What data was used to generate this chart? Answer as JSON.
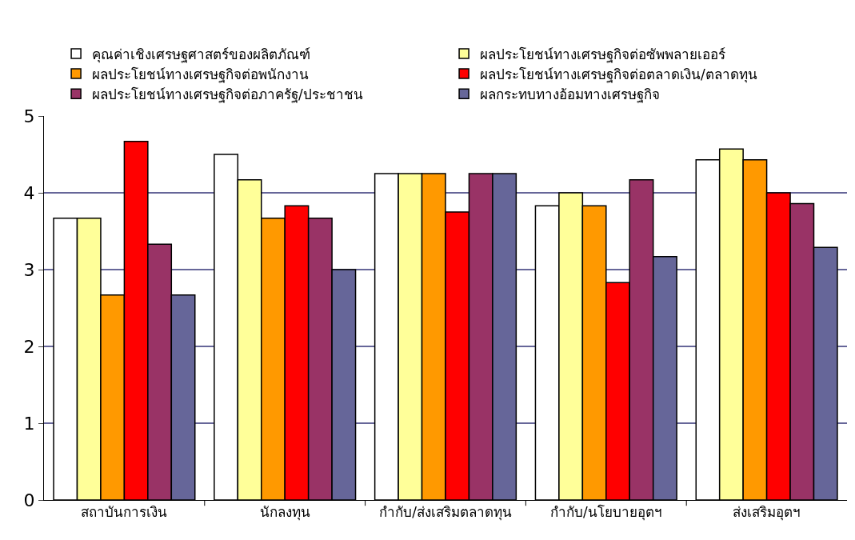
{
  "chart_data": {
    "type": "bar",
    "categories": [
      "สถาบันการเงิน",
      "นักลงทุน",
      "กำกับ/ส่งเสริมตลาดทุน",
      "กำกับ/นโยบายอุตฯ",
      "ส่งเสริมอุตฯ"
    ],
    "series": [
      {
        "name": "คุณค่าเชิงเศรษฐศาสตร์ของผลิตภัณฑ์",
        "color": "#ffffff",
        "values": [
          3.67,
          4.5,
          4.25,
          3.83,
          4.43
        ]
      },
      {
        "name": "ผลประโยชน์ทางเศรษฐกิจต่อซัพพลายเออร์",
        "color": "#ffff99",
        "values": [
          3.67,
          4.17,
          4.25,
          4.0,
          4.57
        ]
      },
      {
        "name": "ผลประโยชน์ทางเศรษฐกิจต่อพนักงาน",
        "color": "#ff9900",
        "values": [
          2.67,
          3.67,
          4.25,
          3.83,
          4.43
        ]
      },
      {
        "name": "ผลประโยชน์ทางเศรษฐกิจต่อตลาดเงิน/ตลาดทุน",
        "color": "#ff0000",
        "values": [
          4.67,
          3.83,
          3.75,
          2.83,
          4.0
        ]
      },
      {
        "name": "ผลประโยชน์ทางเศรษฐกิจต่อภาครัฐ/ประชาชน",
        "color": "#993366",
        "values": [
          3.33,
          3.67,
          4.25,
          4.17,
          3.86
        ]
      },
      {
        "name": "ผลกระทบทางอ้อมทางเศรษฐกิจ",
        "color": "#666699",
        "values": [
          2.67,
          3.0,
          4.25,
          3.17,
          3.29
        ]
      }
    ],
    "ylim": [
      0,
      5
    ],
    "yticks": [
      0,
      1,
      2,
      3,
      4,
      5
    ],
    "grid": "y",
    "legend": "top"
  }
}
